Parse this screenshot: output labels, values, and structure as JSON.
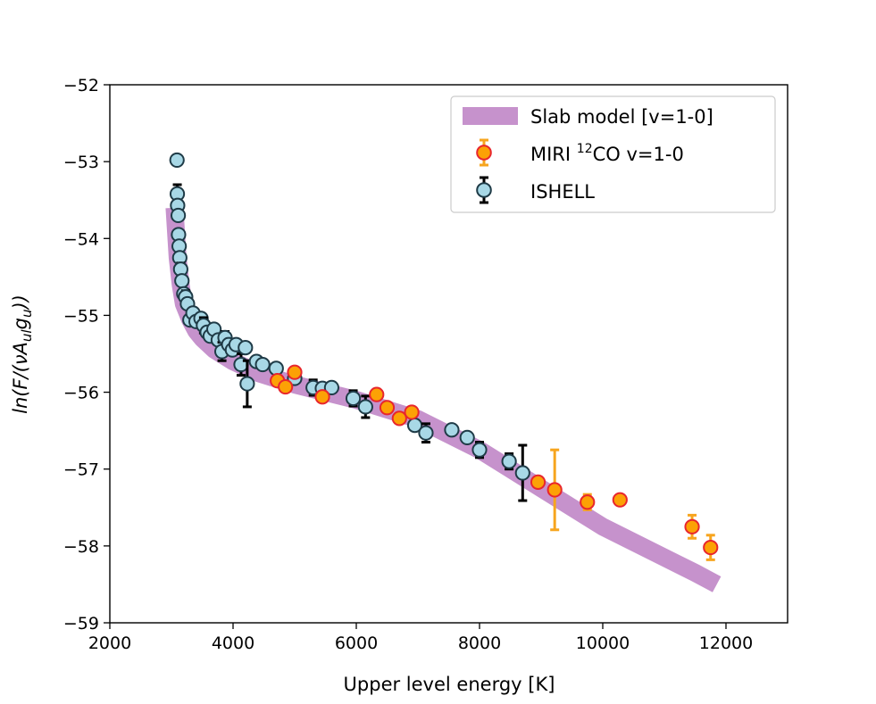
{
  "chart_data": {
    "type": "scatter",
    "title": "",
    "xlabel": "Upper level energy [K]",
    "ylabel": "ln(F/(νA_ul g_u))",
    "xlim": [
      2000,
      13000
    ],
    "ylim": [
      -59,
      -52
    ],
    "x_ticks": [
      2000,
      4000,
      6000,
      8000,
      10000,
      12000
    ],
    "y_ticks": [
      -59,
      -58,
      -57,
      -56,
      -55,
      -54,
      -53,
      -52
    ],
    "x_tick_labels": [
      "2000",
      "4000",
      "6000",
      "8000",
      "10000",
      "12000"
    ],
    "y_tick_labels": [
      "−59",
      "−58",
      "−57",
      "−56",
      "−55",
      "−54",
      "−53",
      "−52"
    ],
    "grid": false,
    "legend_position": "top-right",
    "ylabel_parts": {
      "a": "ln(F/(",
      "nu": "ν",
      "A": "A",
      "ul": "ul",
      "g": "g",
      "u": "u",
      "b": "))"
    },
    "series": [
      {
        "name": "Slab model [v=1-0]",
        "kind": "band",
        "color": "#c692cc",
        "x": [
          3050,
          3100,
          3150,
          3200,
          3300,
          3400,
          3500,
          3700,
          4000,
          4400,
          5000,
          6000,
          7000,
          8000,
          8500,
          9000,
          9500,
          10000,
          10500,
          11000,
          11500,
          11850
        ],
        "y": [
          -53.6,
          -54.25,
          -54.6,
          -54.85,
          -55.05,
          -55.2,
          -55.3,
          -55.45,
          -55.6,
          -55.75,
          -55.9,
          -56.1,
          -56.35,
          -56.75,
          -57.0,
          -57.25,
          -57.5,
          -57.75,
          -57.95,
          -58.15,
          -58.35,
          -58.5
        ]
      },
      {
        "name": "MIRI 12CO v=1-0",
        "legend_label": {
          "prefix": "MIRI ",
          "sup": "12",
          "suffix": "CO v=1-0"
        },
        "kind": "errorbar",
        "color": "#fca105",
        "edge_color": "#e8262d",
        "errcolor": "#f7a51e",
        "x": [
          4720,
          4850,
          5000,
          5450,
          6330,
          6500,
          6700,
          6900,
          8950,
          9220,
          9750,
          10280,
          11450,
          11750
        ],
        "y": [
          -55.85,
          -55.93,
          -55.74,
          -56.06,
          -56.03,
          -56.2,
          -56.34,
          -56.26,
          -57.17,
          -57.27,
          -57.43,
          -57.4,
          -57.75,
          -58.02
        ],
        "yerr": [
          0.06,
          0.06,
          0.06,
          0.06,
          0.06,
          0.06,
          0.06,
          0.06,
          0.06,
          0.52,
          0.1,
          0.06,
          0.15,
          0.16
        ]
      },
      {
        "name": "ISHELL",
        "kind": "errorbar",
        "color": "#a8d8e6",
        "edge_color": "#1f3b47",
        "errcolor": "#000000",
        "x": [
          3090,
          3095,
          3100,
          3110,
          3115,
          3125,
          3135,
          3150,
          3170,
          3200,
          3230,
          3260,
          3300,
          3350,
          3400,
          3480,
          3520,
          3580,
          3630,
          3690,
          3760,
          3820,
          3870,
          3930,
          3990,
          4050,
          4130,
          4200,
          4230,
          4380,
          4480,
          4700,
          5000,
          5300,
          5450,
          5600,
          5950,
          6150,
          6950,
          7130,
          7550,
          7800,
          8000,
          8480,
          8700
        ],
        "y": [
          -52.98,
          -53.42,
          -53.57,
          -53.7,
          -53.95,
          -54.1,
          -54.25,
          -54.4,
          -54.55,
          -54.72,
          -54.76,
          -54.85,
          -55.06,
          -54.97,
          -55.08,
          -55.04,
          -55.13,
          -55.22,
          -55.27,
          -55.18,
          -55.32,
          -55.47,
          -55.29,
          -55.38,
          -55.45,
          -55.38,
          -55.64,
          -55.42,
          -55.89,
          -55.6,
          -55.64,
          -55.69,
          -55.82,
          -55.94,
          -55.95,
          -55.94,
          -56.08,
          -56.19,
          -56.43,
          -56.53,
          -56.49,
          -56.59,
          -56.75,
          -56.9,
          -57.05
        ],
        "yerr": [
          0.0,
          0.12,
          0.0,
          0.0,
          0.0,
          0.0,
          0.0,
          0.08,
          0.0,
          0.0,
          0.08,
          0.0,
          0.0,
          0.0,
          0.0,
          0.0,
          0.1,
          0.0,
          0.0,
          0.0,
          0.0,
          0.12,
          0.08,
          0.0,
          0.0,
          0.0,
          0.14,
          0.0,
          0.3,
          0.0,
          0.0,
          0.0,
          0.0,
          0.1,
          0.0,
          0.0,
          0.1,
          0.14,
          0.0,
          0.12,
          0.0,
          0.0,
          0.1,
          0.1,
          0.36
        ]
      }
    ]
  }
}
